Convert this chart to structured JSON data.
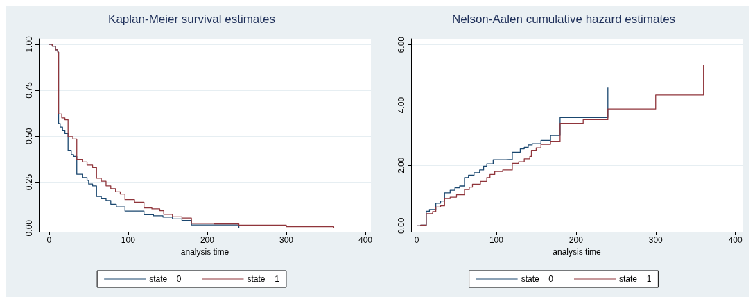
{
  "chart_data": [
    {
      "type": "step",
      "title": "Kaplan-Meier survival estimates",
      "xlabel": "analysis time",
      "xlim": [
        -13,
        407
      ],
      "xticks": [
        0,
        100,
        200,
        300,
        400
      ],
      "ylim": [
        -0.02,
        1.03
      ],
      "yticks": [
        {
          "value": 0,
          "label": "0.00"
        },
        {
          "value": 0.25,
          "label": "0.25"
        },
        {
          "value": 0.5,
          "label": "0.50"
        },
        {
          "value": 0.75,
          "label": "0.75"
        },
        {
          "value": 1,
          "label": "1.00"
        }
      ],
      "grid": "y",
      "legend": "bottom",
      "series": [
        {
          "name": "state = 0",
          "color": "#1a476f",
          "x": [
            0,
            4,
            8,
            11,
            12,
            14,
            17,
            20,
            24,
            28,
            31,
            35,
            42,
            48,
            50,
            55,
            60,
            66,
            72,
            78,
            85,
            96,
            120,
            132,
            144,
            156,
            168,
            180,
            240
          ],
          "values": [
            1.0,
            0.99,
            0.97,
            0.958,
            0.57,
            0.55,
            0.53,
            0.515,
            0.423,
            0.4,
            0.39,
            0.293,
            0.275,
            0.26,
            0.24,
            0.23,
            0.172,
            0.16,
            0.15,
            0.13,
            0.115,
            0.093,
            0.073,
            0.067,
            0.06,
            0.05,
            0.042,
            0.017,
            0.0
          ]
        },
        {
          "name": "state = 1",
          "color": "#90353b",
          "x": [
            0,
            4,
            8,
            11,
            12,
            16,
            20,
            24,
            30,
            35,
            42,
            48,
            55,
            60,
            66,
            72,
            78,
            84,
            90,
            96,
            108,
            120,
            130,
            140,
            145,
            156,
            168,
            180,
            209,
            240,
            300,
            360
          ],
          "values": [
            1.0,
            0.99,
            0.97,
            0.958,
            0.621,
            0.6,
            0.59,
            0.498,
            0.485,
            0.374,
            0.36,
            0.343,
            0.33,
            0.271,
            0.255,
            0.23,
            0.215,
            0.198,
            0.185,
            0.155,
            0.141,
            0.11,
            0.105,
            0.095,
            0.075,
            0.062,
            0.055,
            0.026,
            0.023,
            0.016,
            0.008,
            0.0
          ]
        }
      ]
    },
    {
      "type": "step",
      "title": "Nelson-Aalen cumulative hazard estimates",
      "xlabel": "analysis time",
      "xlim": [
        -7,
        409
      ],
      "xticks": [
        0,
        100,
        200,
        300,
        400
      ],
      "ylim": [
        -0.2,
        6.2
      ],
      "yticks": [
        {
          "value": 0,
          "label": "0.00"
        },
        {
          "value": 2,
          "label": "2.00"
        },
        {
          "value": 4,
          "label": "4.00"
        },
        {
          "value": 6,
          "label": "6.00"
        }
      ],
      "grid": "y",
      "legend": "bottom",
      "series": [
        {
          "name": "state = 0",
          "color": "#1a476f",
          "x": [
            0,
            5,
            12,
            16,
            24,
            30,
            35,
            42,
            48,
            54,
            60,
            65,
            72,
            79,
            84,
            88,
            96,
            112,
            120,
            130,
            135,
            140,
            145,
            156,
            168,
            180,
            240
          ],
          "values": [
            0,
            0.02,
            0.48,
            0.54,
            0.75,
            0.82,
            1.09,
            1.18,
            1.26,
            1.32,
            1.6,
            1.68,
            1.76,
            1.85,
            1.98,
            2.05,
            2.19,
            2.2,
            2.44,
            2.55,
            2.6,
            2.68,
            2.72,
            2.83,
            3.0,
            3.59,
            4.58
          ]
        },
        {
          "name": "state = 1",
          "color": "#90353b",
          "x": [
            0,
            5,
            12,
            20,
            24,
            30,
            35,
            42,
            50,
            60,
            66,
            70,
            80,
            88,
            92,
            98,
            108,
            120,
            128,
            135,
            142,
            144,
            150,
            156,
            168,
            180,
            209,
            240,
            300,
            360
          ],
          "values": [
            0,
            0.02,
            0.4,
            0.47,
            0.62,
            0.66,
            0.9,
            0.95,
            1.03,
            1.2,
            1.28,
            1.38,
            1.47,
            1.6,
            1.7,
            1.8,
            1.85,
            2.07,
            2.12,
            2.22,
            2.3,
            2.5,
            2.58,
            2.7,
            2.8,
            3.4,
            3.52,
            3.87,
            4.34,
            5.35
          ]
        }
      ]
    }
  ]
}
